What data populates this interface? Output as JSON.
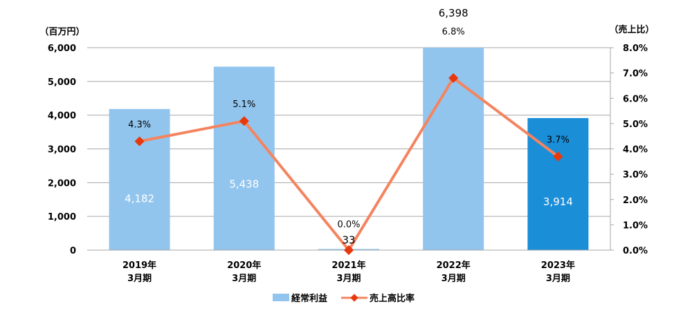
{
  "chart_data": {
    "type": "bar",
    "categories": [
      [
        "2019年",
        "3月期"
      ],
      [
        "2020年",
        "3月期"
      ],
      [
        "2021年",
        "3月期"
      ],
      [
        "2022年",
        "3月期"
      ],
      [
        "2023年",
        "3月期"
      ]
    ],
    "left_axis": {
      "unit_label": "（百万円）",
      "ylim": [
        0,
        6000
      ],
      "ticks": [
        0,
        1000,
        2000,
        3000,
        4000,
        5000,
        6000
      ],
      "tick_labels": [
        "0",
        "1,000",
        "2,000",
        "3,000",
        "4,000",
        "5,000",
        "6,000"
      ]
    },
    "right_axis": {
      "unit_label": "（売上比）",
      "ylim": [
        0,
        8.0
      ],
      "ticks": [
        0,
        1,
        2,
        3,
        4,
        5,
        6,
        7,
        8
      ],
      "tick_labels": [
        "0.0%",
        "1.0%",
        "2.0%",
        "3.0%",
        "4.0%",
        "5.0%",
        "6.0%",
        "7.0%",
        "8.0%"
      ]
    },
    "series": [
      {
        "name": "経常利益",
        "type": "bar",
        "axis": "left",
        "values": [
          4182,
          5438,
          33,
          6398,
          3914
        ],
        "labels": [
          "4,182",
          "5,438",
          "33",
          "6,398",
          "3,914"
        ],
        "colors": [
          "#92c5ee",
          "#92c5ee",
          "#92c5ee",
          "#92c5ee",
          "#1b8ed8"
        ]
      },
      {
        "name": "売上高比率",
        "type": "line",
        "axis": "right",
        "values": [
          4.3,
          5.1,
          0.0,
          6.8,
          3.7
        ],
        "labels": [
          "4.3%",
          "5.1%",
          "0.0%",
          "6.8%",
          "3.7%"
        ],
        "line_color": "#f4845f",
        "marker_color": "#e8380d"
      }
    ],
    "grid": true,
    "legend_position": "bottom"
  }
}
